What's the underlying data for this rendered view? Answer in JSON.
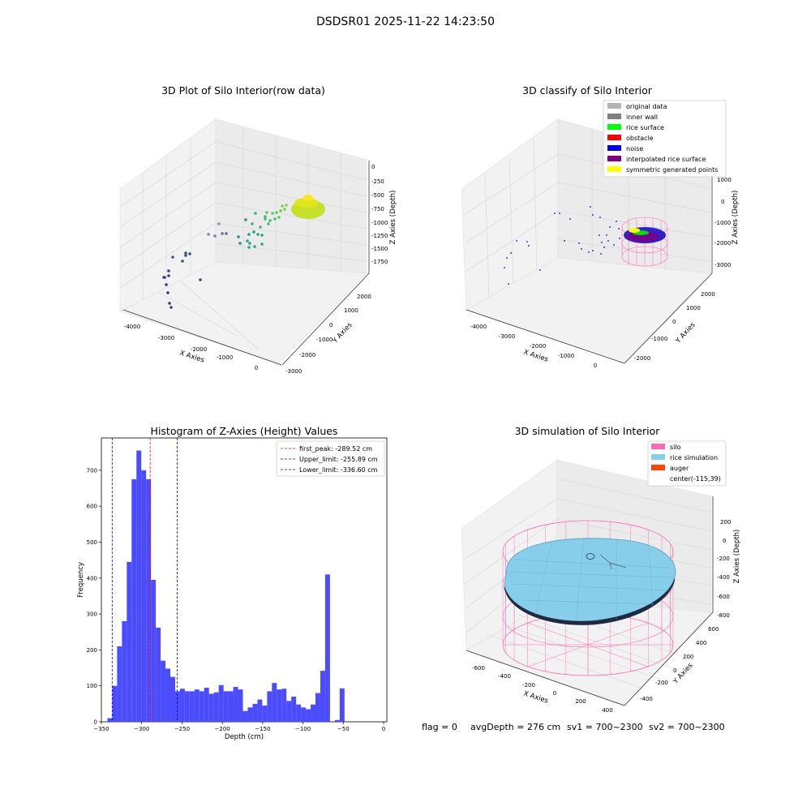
{
  "figure": {
    "suptitle": "DSDSR01 2025-11-22 14:23:50",
    "status": {
      "flag": "flag = 0",
      "avg_depth": "avgDepth = 276 cm",
      "sv1": "sv1 = 700~2300",
      "sv2": "sv2 = 700~2300"
    }
  },
  "chart_data": [
    {
      "type": "scatter",
      "title": "3D Plot of Silo Interior(row data)",
      "xlabel": "X Axies",
      "ylabel": "Y Axies",
      "zlabel": "Z Axies (Depth)",
      "x_ticks": [
        "-4000",
        "-3000",
        "-2000",
        "-1000",
        "0"
      ],
      "y_ticks": [
        "-3000",
        "-2000",
        "-1000",
        "0",
        "1000",
        "2000"
      ],
      "z_ticks": [
        "0",
        "-250",
        "-500",
        "-750",
        "-1000",
        "-1250",
        "-1500",
        "-1750"
      ],
      "grid": true,
      "colormap": "viridis"
    },
    {
      "type": "scatter",
      "title": "3D classify of Silo Interior",
      "xlabel": "X Axies",
      "ylabel": "Y Axies",
      "zlabel": "Z Axies (Depth)",
      "x_ticks": [
        "-4000",
        "-3000",
        "-2000",
        "-1000",
        "0"
      ],
      "y_ticks": [
        "-2000",
        "-1000",
        "0",
        "1000",
        "2000"
      ],
      "z_ticks": [
        "1000",
        "0",
        "-1000",
        "-2000",
        "-3000"
      ],
      "grid": true,
      "legend_position": "top-right",
      "legend": [
        {
          "label": "original data",
          "color": "#b3b3b3"
        },
        {
          "label": "inner wall",
          "color": "#808080"
        },
        {
          "label": "rice surface",
          "color": "#00ff00"
        },
        {
          "label": "obstacle",
          "color": "#ff0000"
        },
        {
          "label": "noise",
          "color": "#0000ff"
        },
        {
          "label": "interpolated rice surface",
          "color": "#800080"
        },
        {
          "label": "symmetric generated points",
          "color": "#ffff00"
        }
      ]
    },
    {
      "type": "bar",
      "title": "Histogram of Z-Axies (Height) Values",
      "xlabel": "Depth (cm)",
      "ylabel": "Frequency",
      "xlim": [
        -350,
        4
      ],
      "ylim": [
        0,
        790
      ],
      "x_ticks": [
        -350,
        -300,
        -250,
        -200,
        -150,
        -100,
        -50,
        0
      ],
      "y_ticks": [
        0,
        100,
        200,
        300,
        400,
        500,
        600,
        700
      ],
      "bar_color": "#4c4cff",
      "bins": [
        [
          -339.5,
          10
        ],
        [
          -333.5,
          100
        ],
        [
          -327.5,
          210
        ],
        [
          -321.5,
          280
        ],
        [
          -315.5,
          445
        ],
        [
          -309.5,
          675
        ],
        [
          -303.5,
          755
        ],
        [
          -297.5,
          700
        ],
        [
          -291.5,
          675
        ],
        [
          -285.5,
          395
        ],
        [
          -279.5,
          262
        ],
        [
          -273.5,
          170
        ],
        [
          -267.5,
          148
        ],
        [
          -261.5,
          125
        ],
        [
          -255.5,
          85
        ],
        [
          -249.5,
          92
        ],
        [
          -243.5,
          85
        ],
        [
          -237.5,
          85
        ],
        [
          -231.5,
          90
        ],
        [
          -225.5,
          85
        ],
        [
          -219.5,
          95
        ],
        [
          -213.5,
          78
        ],
        [
          -207.5,
          82
        ],
        [
          -201.5,
          102
        ],
        [
          -195.5,
          85
        ],
        [
          -189.5,
          85
        ],
        [
          -183.5,
          97
        ],
        [
          -177.5,
          90
        ],
        [
          -171.5,
          30
        ],
        [
          -165.5,
          40
        ],
        [
          -159.5,
          50
        ],
        [
          -153.5,
          62
        ],
        [
          -147.5,
          45
        ],
        [
          -141.5,
          85
        ],
        [
          -135.5,
          108
        ],
        [
          -129.5,
          90
        ],
        [
          -123.5,
          92
        ],
        [
          -117.5,
          58
        ],
        [
          -111.5,
          70
        ],
        [
          -105.5,
          48
        ],
        [
          -99.5,
          40
        ],
        [
          -93.5,
          35
        ],
        [
          -87.5,
          48
        ],
        [
          -81.5,
          80
        ],
        [
          -75.5,
          142
        ],
        [
          -69.5,
          410
        ],
        [
          -63.5,
          0
        ],
        [
          -57.5,
          5
        ],
        [
          -51.5,
          93
        ]
      ],
      "bin_width": 6,
      "vlines": [
        {
          "x": -289.52,
          "color": "#ff0000",
          "label": "first_peak: -289.52 cm"
        },
        {
          "x": -255.89,
          "color": "#0000ff",
          "label": "Upper_limit: -255.89 cm"
        },
        {
          "x": -336.6,
          "color": "#0000ff",
          "label": "Lower_limit: -336.60 cm"
        }
      ],
      "legend_position": "top-right"
    },
    {
      "type": "scatter",
      "title": "3D simulation of Silo Interior",
      "xlabel": "X Axies",
      "ylabel": "Y Axies",
      "zlabel": "Z Axies (Depth)",
      "x_ticks": [
        "-600",
        "-400",
        "-200",
        "0",
        "200",
        "400"
      ],
      "y_ticks": [
        "-400",
        "-200",
        "0",
        "200",
        "400",
        "600"
      ],
      "z_ticks": [
        "200",
        "0",
        "-200",
        "-400",
        "-600",
        "-800"
      ],
      "grid": true,
      "legend_position": "top-right",
      "legend": [
        {
          "label": "silo",
          "color": "#ff69b4"
        },
        {
          "label": "rice simulation",
          "color": "#87ceeb"
        },
        {
          "label": "auger",
          "color": "#ff4500"
        },
        {
          "label": "center(-115,39)",
          "color": ""
        }
      ]
    }
  ]
}
